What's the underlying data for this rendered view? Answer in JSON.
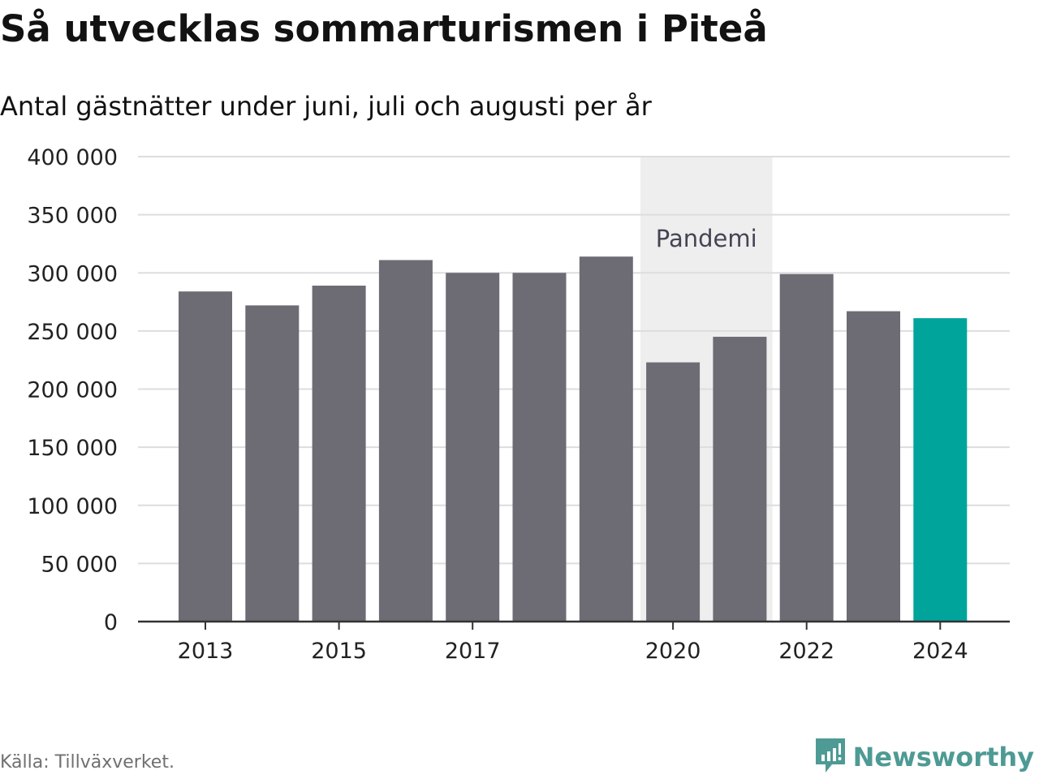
{
  "title": "Så utvecklas sommarturismen i Piteå",
  "subtitle": "Antal gästnätter under juni, juli och augusti per år",
  "source": "Källa: Tillväxverket.",
  "brand": {
    "name": "Newsworthy",
    "icon": "newsworthy-logo-icon",
    "color": "#4e9a94"
  },
  "colors": {
    "bar": "#6d6c75",
    "highlight": "#00a49a",
    "shade": "#eeeeee",
    "grid": "#dddddd",
    "axis": "#333333"
  },
  "chart_data": {
    "type": "bar",
    "categories": [
      "2013",
      "2014",
      "2015",
      "2016",
      "2017",
      "2018",
      "2019",
      "2020",
      "2021",
      "2022",
      "2023",
      "2024"
    ],
    "values": [
      284000,
      272000,
      289000,
      311000,
      300000,
      300000,
      314000,
      223000,
      245000,
      299000,
      267000,
      261000
    ],
    "highlight_category": "2024",
    "x_tick_labels": [
      "2013",
      "2015",
      "2017",
      "2020",
      "2022",
      "2024"
    ],
    "y_tick_labels": [
      "0",
      "50 000",
      "100 000",
      "150 000",
      "200 000",
      "250 000",
      "300 000",
      "350 000",
      "400 000"
    ],
    "ylim": [
      0,
      400000
    ],
    "xlabel": "",
    "ylabel": "",
    "grid": true,
    "annotations": [
      {
        "label": "Pandemi",
        "from": "2020",
        "to": "2021"
      }
    ]
  }
}
